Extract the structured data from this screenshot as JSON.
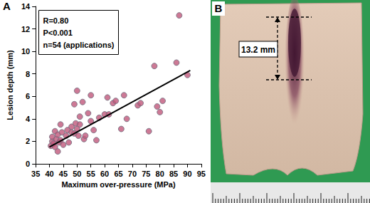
{
  "chart_data": {
    "type": "scatter",
    "xlabel": "Maximum over-pressure (MPa)",
    "ylabel": "Lesion depth (mm)",
    "annotations": [
      "R=0.80",
      "P<0.001",
      "n=54 (applications)"
    ],
    "xlim": [
      35,
      95
    ],
    "xticks": [
      35,
      40,
      45,
      50,
      55,
      60,
      65,
      70,
      75,
      80,
      85,
      90,
      95
    ],
    "ylim": [
      0,
      14
    ],
    "yticks": [
      0,
      2,
      4,
      6,
      8,
      10,
      12,
      14
    ],
    "grid": false,
    "series": [
      {
        "type": "scatter",
        "marker": "circle",
        "color": "#c0587a",
        "x": [
          40.5,
          41,
          41,
          41.5,
          42,
          42,
          42.5,
          43,
          43,
          43.5,
          44,
          44,
          44.5,
          45,
          46,
          46.5,
          47,
          48,
          48,
          49,
          49,
          49.5,
          50,
          50,
          50.5,
          51,
          51,
          52,
          52.5,
          53,
          54,
          55,
          55,
          56,
          57,
          58,
          60,
          61,
          63,
          64,
          66,
          67,
          68,
          72,
          73,
          76,
          78,
          79,
          81,
          80,
          86,
          87,
          90,
          61.5
        ],
        "values": [
          1.6,
          2.0,
          2.4,
          1.8,
          2.9,
          1.5,
          2.2,
          1.1,
          2.6,
          1.9,
          2.1,
          3.5,
          2.8,
          1.7,
          2.5,
          3.0,
          1.9,
          2.8,
          3.3,
          5.3,
          2.7,
          3.6,
          6.5,
          3.1,
          2.5,
          4.2,
          3.5,
          5.5,
          2.2,
          2.5,
          4.5,
          6.1,
          3.8,
          3.0,
          2.1,
          4.1,
          4.4,
          5.9,
          5.4,
          5.6,
          3.1,
          6.1,
          4.0,
          5.2,
          5.4,
          2.9,
          8.7,
          5.1,
          5.6,
          4.6,
          9.0,
          13.2,
          7.9,
          4.4
        ]
      },
      {
        "type": "line",
        "line_style": "solid",
        "color": "#000000",
        "x": [
          40,
          91
        ],
        "values": [
          1.5,
          8.3
        ]
      }
    ]
  },
  "panel_labels": [
    "A",
    "B"
  ],
  "photo": {
    "measurement": "13.2 mm"
  }
}
